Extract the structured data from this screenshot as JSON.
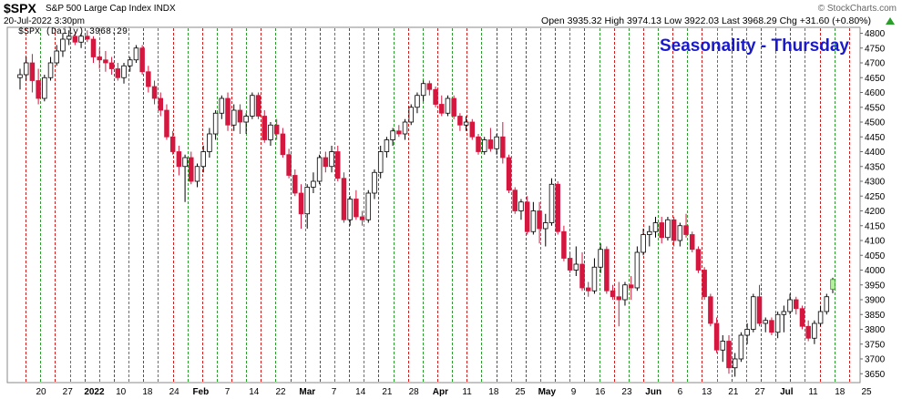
{
  "header": {
    "symbol": "$SPX",
    "name": "S&P 500 Large Cap Index INDX",
    "watermark": "© StockCharts.com",
    "date": "20-Jul-2022 3:30pm",
    "ohlc_text": "Open 3935.32  High 3974.13  Low 3922.03  Last 3968.29  Chg +31.60 (+0.80%)",
    "change_direction": "up-triangle-icon"
  },
  "legend": "$SPX (Daily) 3968.29",
  "annotation": "Seasonality - Thursday",
  "colors": {
    "up": "#ffffff",
    "down": "#d4173f",
    "grid_green": "#2a9d2a",
    "grid_red": "#d21c1c",
    "text_blue": "#1a1acc"
  },
  "chart_data": {
    "type": "candlestick",
    "title": "Seasonality - Thursday",
    "ylim": [
      3620,
      4820
    ],
    "y_ticks": [
      3650,
      3700,
      3750,
      3800,
      3850,
      3900,
      3950,
      4000,
      4050,
      4100,
      4150,
      4200,
      4250,
      4300,
      4350,
      4400,
      4450,
      4500,
      4550,
      4600,
      4650,
      4700,
      4750,
      4800
    ],
    "x_tick_labels": [
      {
        "label": "20",
        "bold": false
      },
      {
        "label": "27",
        "bold": false
      },
      {
        "label": "2022",
        "bold": true
      },
      {
        "label": "10",
        "bold": false
      },
      {
        "label": "18",
        "bold": false
      },
      {
        "label": "24",
        "bold": false
      },
      {
        "label": "Feb",
        "bold": true
      },
      {
        "label": "7",
        "bold": false
      },
      {
        "label": "14",
        "bold": false
      },
      {
        "label": "22",
        "bold": false
      },
      {
        "label": "Mar",
        "bold": true
      },
      {
        "label": "7",
        "bold": false
      },
      {
        "label": "14",
        "bold": false
      },
      {
        "label": "21",
        "bold": false
      },
      {
        "label": "28",
        "bold": false
      },
      {
        "label": "Apr",
        "bold": true
      },
      {
        "label": "11",
        "bold": false
      },
      {
        "label": "18",
        "bold": false
      },
      {
        "label": "25",
        "bold": false
      },
      {
        "label": "May",
        "bold": true
      },
      {
        "label": "9",
        "bold": false
      },
      {
        "label": "16",
        "bold": false
      },
      {
        "label": "23",
        "bold": false
      },
      {
        "label": "Jun",
        "bold": true
      },
      {
        "label": "6",
        "bold": false
      },
      {
        "label": "13",
        "bold": false
      },
      {
        "label": "21",
        "bold": false
      },
      {
        "label": "27",
        "bold": false
      },
      {
        "label": "Jul",
        "bold": true
      },
      {
        "label": "11",
        "bold": false
      },
      {
        "label": "18",
        "bold": false
      },
      {
        "label": "25",
        "bold": false
      }
    ],
    "vertical_lines_red_dashed": 29,
    "vertical_lines_green_dashed": 28,
    "candles": [
      [
        4650,
        4680,
        4610,
        4660
      ],
      [
        4660,
        4720,
        4640,
        4700
      ],
      [
        4700,
        4730,
        4600,
        4640
      ],
      [
        4640,
        4680,
        4560,
        4580
      ],
      [
        4580,
        4660,
        4570,
        4650
      ],
      [
        4650,
        4720,
        4640,
        4700
      ],
      [
        4700,
        4760,
        4690,
        4740
      ],
      [
        4740,
        4800,
        4720,
        4780
      ],
      [
        4780,
        4810,
        4760,
        4790
      ],
      [
        4790,
        4800,
        4760,
        4770
      ],
      [
        4770,
        4800,
        4750,
        4790
      ],
      [
        4790,
        4810,
        4770,
        4780
      ],
      [
        4780,
        4790,
        4700,
        4720
      ],
      [
        4720,
        4750,
        4680,
        4710
      ],
      [
        4710,
        4740,
        4670,
        4700
      ],
      [
        4700,
        4720,
        4660,
        4680
      ],
      [
        4680,
        4700,
        4640,
        4650
      ],
      [
        4650,
        4700,
        4630,
        4690
      ],
      [
        4690,
        4720,
        4670,
        4710
      ],
      [
        4710,
        4760,
        4700,
        4750
      ],
      [
        4750,
        4760,
        4660,
        4670
      ],
      [
        4670,
        4690,
        4600,
        4620
      ],
      [
        4620,
        4640,
        4560,
        4580
      ],
      [
        4580,
        4600,
        4520,
        4540
      ],
      [
        4540,
        4560,
        4440,
        4450
      ],
      [
        4450,
        4470,
        4390,
        4400
      ],
      [
        4400,
        4420,
        4320,
        4350
      ],
      [
        4350,
        4390,
        4230,
        4380
      ],
      [
        4380,
        4400,
        4290,
        4300
      ],
      [
        4300,
        4360,
        4280,
        4350
      ],
      [
        4350,
        4420,
        4330,
        4400
      ],
      [
        4400,
        4480,
        4380,
        4460
      ],
      [
        4460,
        4540,
        4440,
        4530
      ],
      [
        4530,
        4590,
        4510,
        4580
      ],
      [
        4580,
        4600,
        4470,
        4490
      ],
      [
        4490,
        4560,
        4470,
        4540
      ],
      [
        4540,
        4560,
        4460,
        4500
      ],
      [
        4500,
        4530,
        4460,
        4520
      ],
      [
        4520,
        4600,
        4510,
        4590
      ],
      [
        4590,
        4600,
        4510,
        4520
      ],
      [
        4520,
        4540,
        4430,
        4440
      ],
      [
        4440,
        4500,
        4420,
        4490
      ],
      [
        4490,
        4510,
        4440,
        4460
      ],
      [
        4460,
        4480,
        4380,
        4390
      ],
      [
        4390,
        4410,
        4310,
        4320
      ],
      [
        4320,
        4340,
        4250,
        4260
      ],
      [
        4260,
        4290,
        4140,
        4190
      ],
      [
        4190,
        4290,
        4140,
        4280
      ],
      [
        4280,
        4330,
        4260,
        4300
      ],
      [
        4300,
        4390,
        4290,
        4380
      ],
      [
        4380,
        4400,
        4330,
        4350
      ],
      [
        4350,
        4420,
        4330,
        4400
      ],
      [
        4400,
        4420,
        4300,
        4310
      ],
      [
        4310,
        4330,
        4160,
        4170
      ],
      [
        4170,
        4250,
        4150,
        4240
      ],
      [
        4240,
        4270,
        4170,
        4180
      ],
      [
        4180,
        4200,
        4150,
        4170
      ],
      [
        4170,
        4270,
        4160,
        4260
      ],
      [
        4260,
        4340,
        4240,
        4330
      ],
      [
        4330,
        4420,
        4310,
        4400
      ],
      [
        4400,
        4450,
        4380,
        4440
      ],
      [
        4440,
        4480,
        4420,
        4470
      ],
      [
        4470,
        4490,
        4450,
        4460
      ],
      [
        4460,
        4510,
        4440,
        4500
      ],
      [
        4500,
        4560,
        4490,
        4550
      ],
      [
        4550,
        4600,
        4530,
        4590
      ],
      [
        4590,
        4640,
        4570,
        4630
      ],
      [
        4630,
        4640,
        4590,
        4610
      ],
      [
        4610,
        4620,
        4550,
        4560
      ],
      [
        4560,
        4590,
        4520,
        4530
      ],
      [
        4530,
        4590,
        4520,
        4580
      ],
      [
        4580,
        4590,
        4510,
        4520
      ],
      [
        4520,
        4530,
        4470,
        4490
      ],
      [
        4490,
        4520,
        4470,
        4500
      ],
      [
        4500,
        4510,
        4440,
        4450
      ],
      [
        4450,
        4460,
        4390,
        4400
      ],
      [
        4400,
        4450,
        4390,
        4440
      ],
      [
        4440,
        4480,
        4400,
        4410
      ],
      [
        4410,
        4460,
        4390,
        4450
      ],
      [
        4450,
        4500,
        4360,
        4380
      ],
      [
        4380,
        4390,
        4260,
        4270
      ],
      [
        4270,
        4280,
        4190,
        4200
      ],
      [
        4200,
        4240,
        4170,
        4230
      ],
      [
        4230,
        4250,
        4120,
        4130
      ],
      [
        4130,
        4230,
        4120,
        4200
      ],
      [
        4200,
        4230,
        4090,
        4140
      ],
      [
        4140,
        4190,
        4080,
        4160
      ],
      [
        4160,
        4310,
        4150,
        4290
      ],
      [
        4290,
        4300,
        4120,
        4130
      ],
      [
        4130,
        4150,
        4030,
        4040
      ],
      [
        4040,
        4060,
        3990,
        4000
      ],
      [
        4000,
        4080,
        3980,
        4020
      ],
      [
        4020,
        4060,
        3930,
        3940
      ],
      [
        3940,
        3960,
        3910,
        3930
      ],
      [
        3930,
        4040,
        3920,
        4010
      ],
      [
        4010,
        4090,
        3990,
        4070
      ],
      [
        4070,
        4080,
        3920,
        3930
      ],
      [
        3930,
        3950,
        3900,
        3910
      ],
      [
        3910,
        3960,
        3810,
        3900
      ],
      [
        3900,
        3960,
        3880,
        3950
      ],
      [
        3950,
        3980,
        3900,
        3940
      ],
      [
        3940,
        4080,
        3930,
        4060
      ],
      [
        4060,
        4140,
        4050,
        4120
      ],
      [
        4120,
        4150,
        4080,
        4130
      ],
      [
        4130,
        4180,
        4110,
        4160
      ],
      [
        4160,
        4180,
        4090,
        4110
      ],
      [
        4110,
        4180,
        4100,
        4170
      ],
      [
        4170,
        4180,
        4080,
        4100
      ],
      [
        4100,
        4160,
        4080,
        4150
      ],
      [
        4150,
        4190,
        4110,
        4120
      ],
      [
        4120,
        4130,
        4060,
        4070
      ],
      [
        4070,
        4080,
        3990,
        4000
      ],
      [
        4000,
        4010,
        3900,
        3910
      ],
      [
        3910,
        3920,
        3810,
        3820
      ],
      [
        3820,
        3840,
        3720,
        3730
      ],
      [
        3730,
        3780,
        3690,
        3760
      ],
      [
        3760,
        3780,
        3650,
        3670
      ],
      [
        3670,
        3720,
        3640,
        3700
      ],
      [
        3700,
        3790,
        3690,
        3780
      ],
      [
        3780,
        3820,
        3750,
        3800
      ],
      [
        3800,
        3920,
        3790,
        3910
      ],
      [
        3910,
        3950,
        3810,
        3820
      ],
      [
        3820,
        3840,
        3790,
        3830
      ],
      [
        3830,
        3840,
        3780,
        3790
      ],
      [
        3790,
        3860,
        3770,
        3850
      ],
      [
        3850,
        3880,
        3790,
        3860
      ],
      [
        3860,
        3920,
        3850,
        3900
      ],
      [
        3900,
        3910,
        3850,
        3870
      ],
      [
        3870,
        3880,
        3800,
        3810
      ],
      [
        3810,
        3830,
        3760,
        3770
      ],
      [
        3770,
        3830,
        3750,
        3820
      ],
      [
        3820,
        3880,
        3810,
        3860
      ],
      [
        3860,
        3920,
        3850,
        3910
      ],
      [
        3935.32,
        3974.13,
        3922.03,
        3968.29
      ]
    ]
  }
}
